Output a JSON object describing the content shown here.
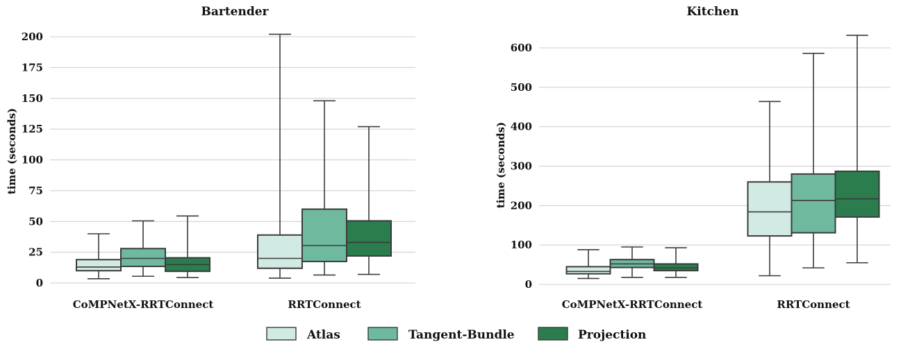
{
  "chart_data": [
    {
      "type": "box",
      "title": "Bartender",
      "ylabel": "time (seconds)",
      "xlabel": "",
      "ylim": [
        -7,
        213
      ],
      "yticks": [
        0,
        25,
        50,
        75,
        100,
        125,
        150,
        175,
        200
      ],
      "grid": true,
      "categories": [
        "CoMPNetX-RRTConnect",
        "RRTConnect"
      ],
      "series": [
        {
          "name": "Atlas",
          "color": "#d1eae3",
          "boxes": [
            {
              "whislo": 3.5,
              "q1": 10,
              "median": 13,
              "q3": 19,
              "whishi": 40
            },
            {
              "whislo": 4,
              "q1": 12,
              "median": 20,
              "q3": 39,
              "whishi": 202
            }
          ]
        },
        {
          "name": "Tangent-Bundle",
          "color": "#6fb99f",
          "boxes": [
            {
              "whislo": 5.5,
              "q1": 13.5,
              "median": 20,
              "q3": 28,
              "whishi": 50.5
            },
            {
              "whislo": 6.5,
              "q1": 17.5,
              "median": 30.5,
              "q3": 60,
              "whishi": 148
            }
          ]
        },
        {
          "name": "Projection",
          "color": "#2b7d4e",
          "boxes": [
            {
              "whislo": 4.5,
              "q1": 9.5,
              "median": 15,
              "q3": 20.5,
              "whishi": 54.5
            },
            {
              "whislo": 7,
              "q1": 22,
              "median": 33,
              "q3": 50.5,
              "whishi": 127
            }
          ]
        }
      ]
    },
    {
      "type": "box",
      "title": "Kitchen",
      "ylabel": "time (seconds)",
      "xlabel": "",
      "ylim": [
        -20,
        660
      ],
      "yticks": [
        0,
        100,
        200,
        300,
        400,
        500,
        600
      ],
      "grid": true,
      "categories": [
        "CoMPNetX-RRTConnect",
        "RRTConnect"
      ],
      "series": [
        {
          "name": "Atlas",
          "color": "#d1eae3",
          "boxes": [
            {
              "whislo": 15,
              "q1": 27,
              "median": 33,
              "q3": 45,
              "whishi": 88
            },
            {
              "whislo": 22,
              "q1": 123,
              "median": 184,
              "q3": 260,
              "whishi": 464
            }
          ]
        },
        {
          "name": "Tangent-Bundle",
          "color": "#6fb99f",
          "boxes": [
            {
              "whislo": 18,
              "q1": 43,
              "median": 52,
              "q3": 63,
              "whishi": 95
            },
            {
              "whislo": 42,
              "q1": 131,
              "median": 213,
              "q3": 280,
              "whishi": 586
            }
          ]
        },
        {
          "name": "Projection",
          "color": "#2b7d4e",
          "boxes": [
            {
              "whislo": 18,
              "q1": 35,
              "median": 42,
              "q3": 52,
              "whishi": 93
            },
            {
              "whislo": 55,
              "q1": 171,
              "median": 217,
              "q3": 287,
              "whishi": 632
            }
          ]
        }
      ]
    }
  ],
  "legend": {
    "position": "bottom-center",
    "entries": [
      {
        "label": "Atlas",
        "color": "#d1eae3"
      },
      {
        "label": "Tangent-Bundle",
        "color": "#6fb99f"
      },
      {
        "label": "Projection",
        "color": "#2b7d4e"
      }
    ]
  }
}
